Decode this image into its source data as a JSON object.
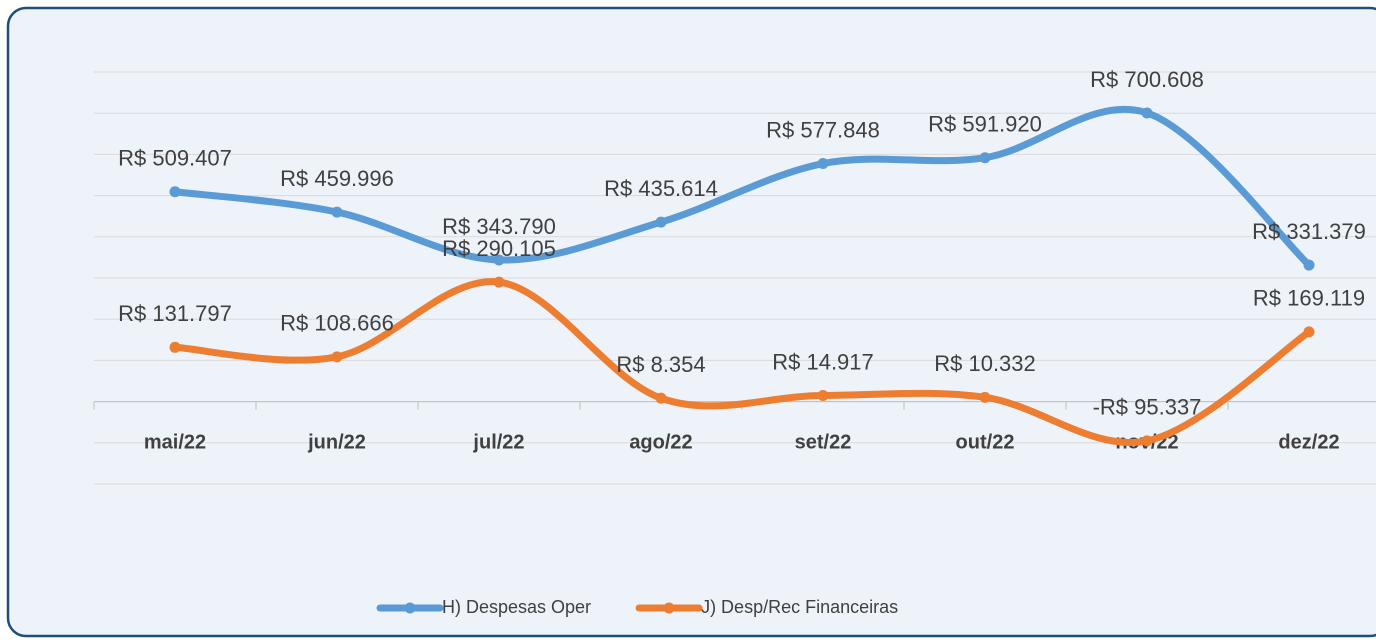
{
  "chart_data": {
    "type": "line",
    "categories": [
      "mai/22",
      "jun/22",
      "jul/22",
      "ago/22",
      "set/22",
      "out/22",
      "nov/22",
      "dez/22"
    ],
    "series": [
      {
        "name": "H) Despesas Oper",
        "color": "#5b9bd5",
        "values": [
          509407,
          459996,
          343790,
          435614,
          577848,
          591920,
          700608,
          331379
        ],
        "value_labels": [
          "R$ 509.407",
          "R$ 459.996",
          "R$ 343.790",
          "R$ 435.614",
          "R$ 577.848",
          "R$ 591.920",
          "R$ 700.608",
          "R$ 331.379"
        ]
      },
      {
        "name": "J) Desp/Rec Financeiras",
        "color": "#ed7d31",
        "values": [
          131797,
          108666,
          290105,
          8354,
          14917,
          10332,
          -95337,
          169119
        ],
        "value_labels": [
          "R$ 131.797",
          "R$ 108.666",
          "R$ 290.105",
          "R$ 8.354",
          "R$ 14.917",
          "R$ 10.332",
          "-R$ 95.337",
          "R$ 169.119"
        ]
      }
    ],
    "ylim": [
      -200000,
      800000
    ],
    "yticks": [
      -200000,
      -100000,
      0,
      100000,
      200000,
      300000,
      400000,
      500000,
      600000,
      700000,
      800000
    ],
    "grid": true,
    "smooth": true,
    "legend": "bottom"
  }
}
